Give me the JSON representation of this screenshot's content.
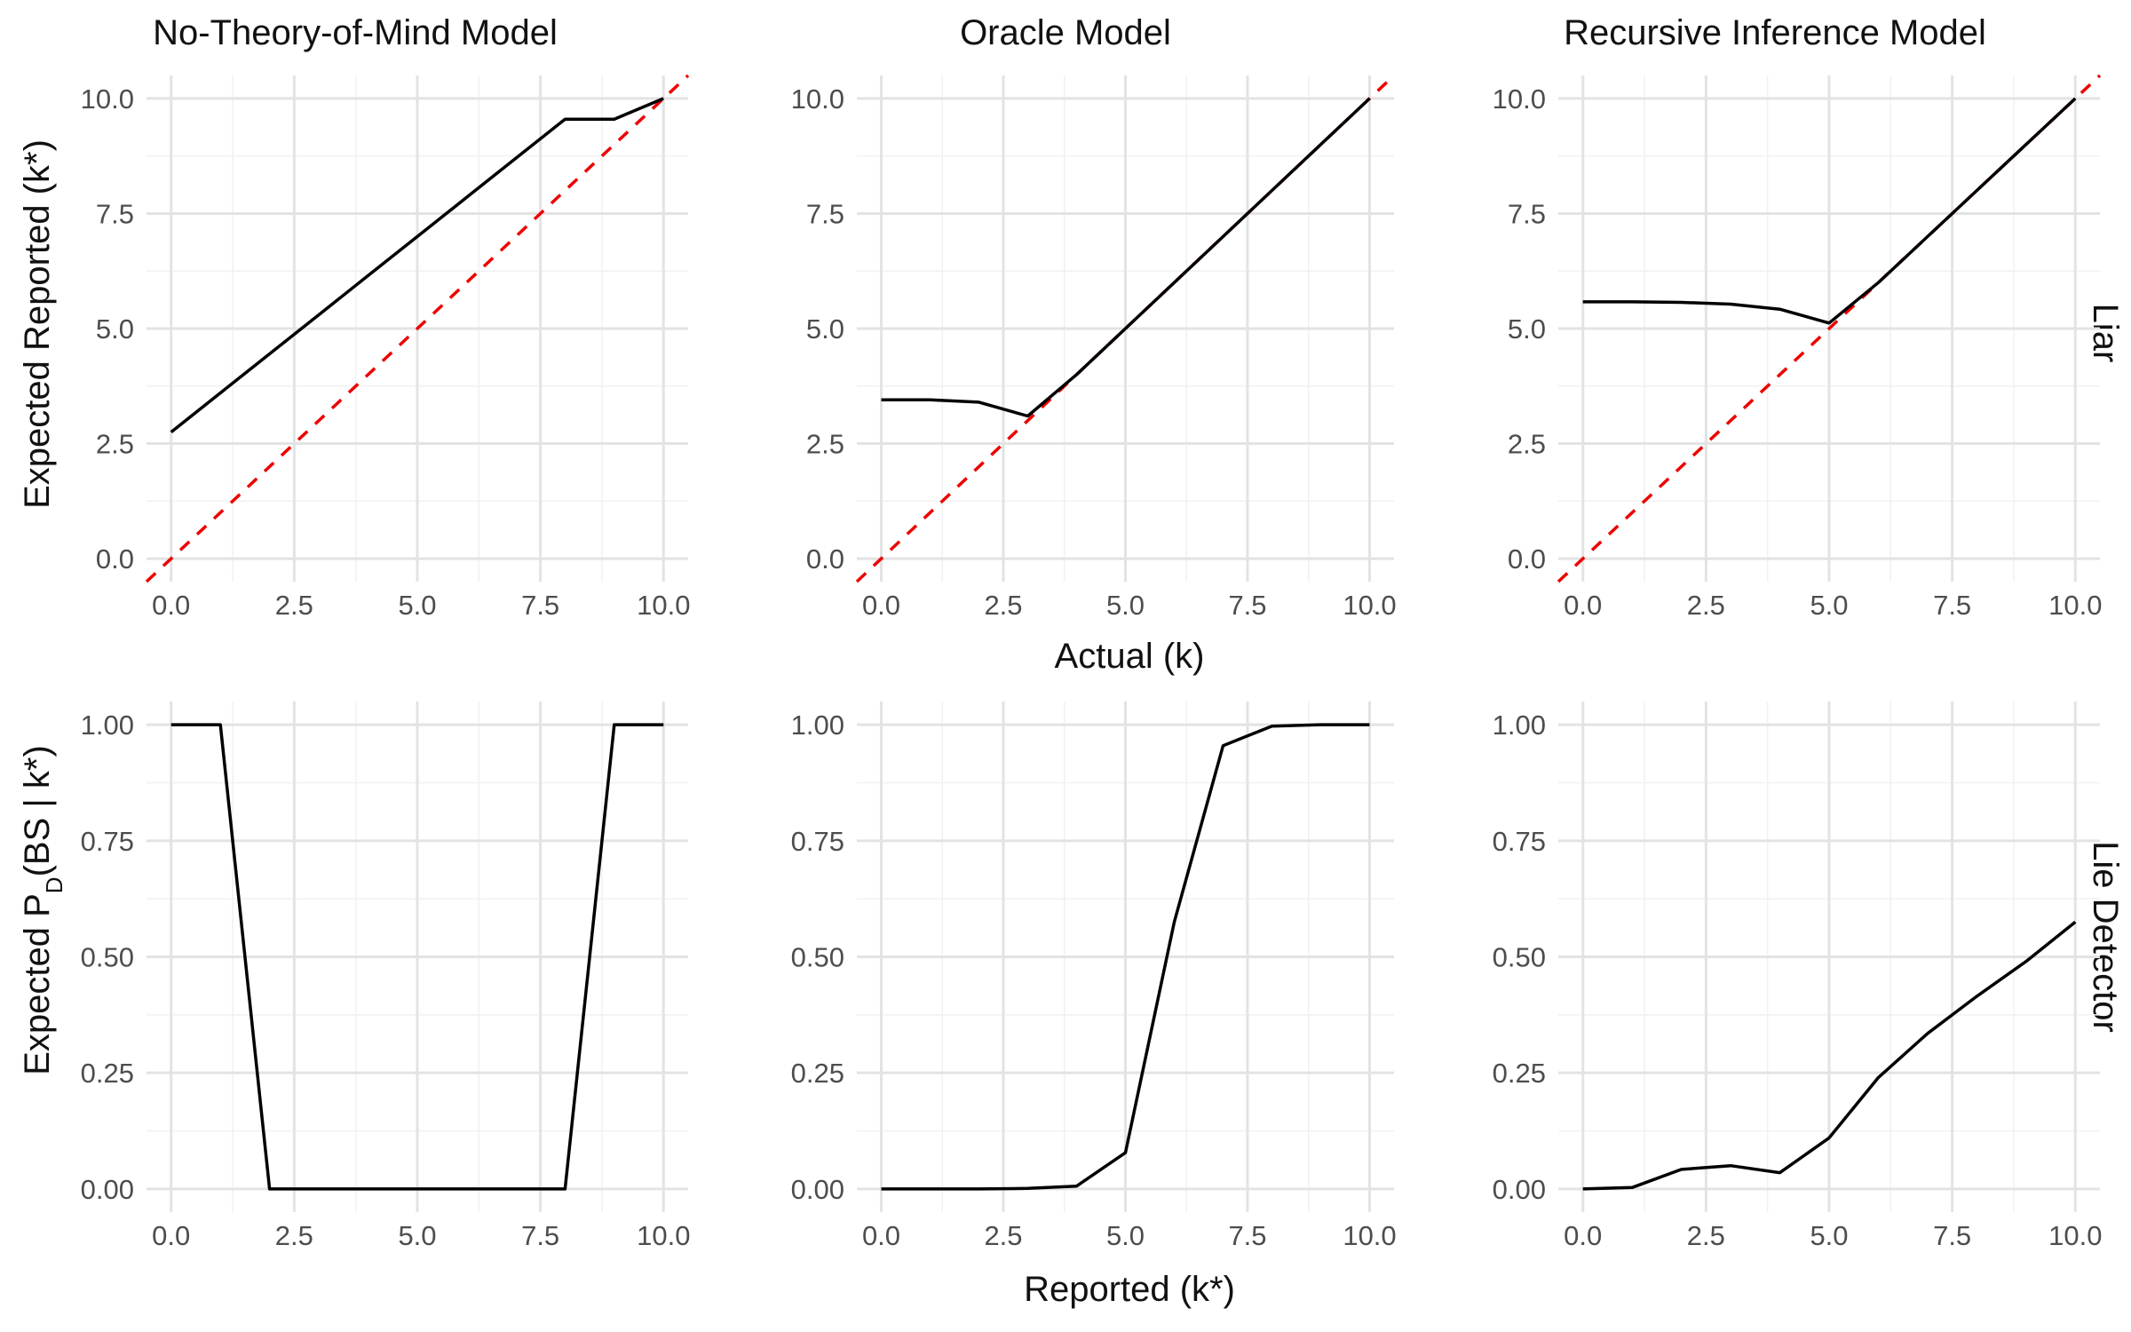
{
  "columns": [
    "No-Theory-of-Mind Model",
    "Oracle Model",
    "Recursive Inference Model"
  ],
  "rows": [
    "Liar",
    "Lie Detector"
  ],
  "axes": {
    "top_xlabel": "Actual (k)",
    "top_ylabel": "Expected Reported (k*)",
    "bottom_xlabel": "Reported (k*)",
    "bottom_ylabel_main": "Expected P",
    "bottom_ylabel_sub": "D",
    "bottom_ylabel_rest": "(BS | k*)"
  },
  "chart_data": [
    {
      "type": "line",
      "row": "Liar",
      "column": "No-Theory-of-Mind Model",
      "xlim": [
        0,
        10
      ],
      "ylim": [
        0,
        10
      ],
      "x_ticks": [
        "0.0",
        "2.5",
        "5.0",
        "7.5",
        "10.0"
      ],
      "y_ticks": [
        "0.0",
        "2.5",
        "5.0",
        "7.5",
        "10.0"
      ],
      "reference_line": "y = x",
      "series": [
        {
          "x": [
            0,
            1,
            2,
            3,
            4,
            5,
            6,
            7,
            8,
            9,
            10
          ],
          "values": [
            2.75,
            3.6,
            4.45,
            5.3,
            6.15,
            7.0,
            7.85,
            8.7,
            9.55,
            9.55,
            10.0
          ]
        }
      ]
    },
    {
      "type": "line",
      "row": "Liar",
      "column": "Oracle Model",
      "xlim": [
        0,
        10
      ],
      "ylim": [
        0,
        10
      ],
      "x_ticks": [
        "0.0",
        "2.5",
        "5.0",
        "7.5",
        "10.0"
      ],
      "y_ticks": [
        "0.0",
        "2.5",
        "5.0",
        "7.5",
        "10.0"
      ],
      "reference_line": "y = x",
      "series": [
        {
          "x": [
            0,
            1,
            2,
            3,
            4,
            5,
            6,
            7,
            8,
            9,
            10
          ],
          "values": [
            3.45,
            3.45,
            3.4,
            3.1,
            4.0,
            5.0,
            6.0,
            7.0,
            8.0,
            9.0,
            10.0
          ]
        }
      ]
    },
    {
      "type": "line",
      "row": "Liar",
      "column": "Recursive Inference Model",
      "xlim": [
        0,
        10
      ],
      "ylim": [
        0,
        10
      ],
      "x_ticks": [
        "0.0",
        "2.5",
        "5.0",
        "7.5",
        "10.0"
      ],
      "y_ticks": [
        "0.0",
        "2.5",
        "5.0",
        "7.5",
        "10.0"
      ],
      "reference_line": "y = x",
      "series": [
        {
          "x": [
            0,
            1,
            2,
            3,
            4,
            5,
            6,
            7,
            8,
            9,
            10
          ],
          "values": [
            5.58,
            5.58,
            5.57,
            5.53,
            5.42,
            5.12,
            6.0,
            7.0,
            8.0,
            9.0,
            10.0
          ]
        }
      ]
    },
    {
      "type": "line",
      "row": "Lie Detector",
      "column": "No-Theory-of-Mind Model",
      "xlim": [
        0,
        10
      ],
      "ylim": [
        0,
        1
      ],
      "x_ticks": [
        "0.0",
        "2.5",
        "5.0",
        "7.5",
        "10.0"
      ],
      "y_ticks": [
        "0.00",
        "0.25",
        "0.50",
        "0.75",
        "1.00"
      ],
      "series": [
        {
          "x": [
            0,
            1,
            2,
            3,
            4,
            5,
            6,
            7,
            8,
            9,
            10
          ],
          "values": [
            1.0,
            1.0,
            0.0,
            0.0,
            0.0,
            0.0,
            0.0,
            0.0,
            0.0,
            1.0,
            1.0
          ]
        }
      ]
    },
    {
      "type": "line",
      "row": "Lie Detector",
      "column": "Oracle Model",
      "xlim": [
        0,
        10
      ],
      "ylim": [
        0,
        1
      ],
      "x_ticks": [
        "0.0",
        "2.5",
        "5.0",
        "7.5",
        "10.0"
      ],
      "y_ticks": [
        "0.00",
        "0.25",
        "0.50",
        "0.75",
        "1.00"
      ],
      "series": [
        {
          "x": [
            0,
            1,
            2,
            3,
            4,
            5,
            6,
            7,
            8,
            9,
            10
          ],
          "values": [
            0.0,
            0.0,
            0.0,
            0.001,
            0.006,
            0.078,
            0.575,
            0.955,
            0.997,
            1.0,
            1.0
          ]
        }
      ]
    },
    {
      "type": "line",
      "row": "Lie Detector",
      "column": "Recursive Inference Model",
      "xlim": [
        0,
        10
      ],
      "ylim": [
        0,
        1
      ],
      "x_ticks": [
        "0.0",
        "2.5",
        "5.0",
        "7.5",
        "10.0"
      ],
      "y_ticks": [
        "0.00",
        "0.25",
        "0.50",
        "0.75",
        "1.00"
      ],
      "series": [
        {
          "x": [
            0,
            1,
            2,
            3,
            4,
            5,
            6,
            7,
            8,
            9,
            10
          ],
          "values": [
            0.0,
            0.003,
            0.042,
            0.05,
            0.035,
            0.11,
            0.24,
            0.335,
            0.415,
            0.49,
            0.575
          ]
        }
      ]
    }
  ]
}
